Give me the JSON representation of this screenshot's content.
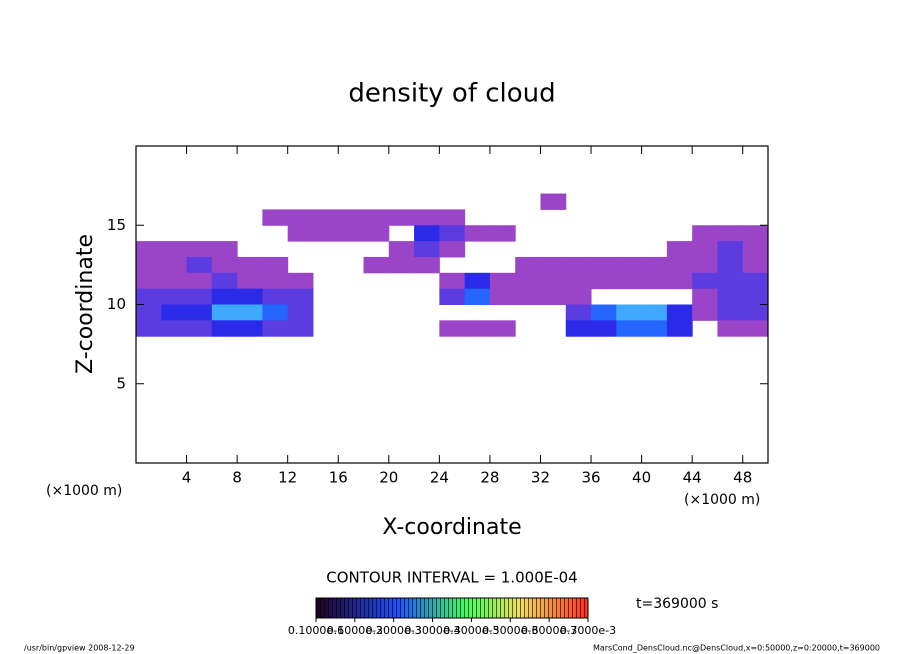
{
  "chart_data": {
    "type": "contour",
    "title": "density of cloud",
    "xlabel": "X-coordinate",
    "ylabel": "Z-coordinate",
    "xunit": "(×1000 m)",
    "xunit2": "(×1000 m)",
    "xlim": [
      0,
      50
    ],
    "ylim": [
      0,
      20
    ],
    "xticks": [
      4,
      8,
      12,
      16,
      20,
      24,
      28,
      32,
      36,
      40,
      44,
      48
    ],
    "yticks": [
      5,
      10,
      15
    ],
    "x": [
      1,
      3,
      5,
      7,
      9,
      11,
      13,
      15,
      17,
      19,
      21,
      23,
      25,
      27,
      29,
      31,
      33,
      35,
      37,
      39,
      41,
      43,
      45,
      47,
      49
    ],
    "z": [
      16.5,
      15.5,
      14.5,
      13.5,
      12.5,
      11.5,
      10.5,
      9.5,
      8.5
    ],
    "values": [
      [
        0,
        0,
        0,
        0,
        0,
        0,
        0,
        0,
        0,
        0,
        0,
        0,
        0,
        0,
        0,
        0,
        0.0001,
        0,
        0,
        0,
        0,
        0,
        0,
        0,
        0
      ],
      [
        0,
        0,
        0,
        0,
        0,
        0.0001,
        0.0001,
        0.0001,
        0.0001,
        0.0001,
        0.0001,
        0.0001,
        0.0001,
        0,
        0,
        0,
        0,
        0,
        0,
        0,
        0,
        0,
        0,
        0,
        0
      ],
      [
        0,
        0,
        0,
        0,
        0,
        0,
        0.0001,
        0.0001,
        0.0001,
        0.0001,
        0,
        0.0003,
        0.0002,
        0.0001,
        0.0001,
        0,
        0,
        0,
        0,
        0,
        0,
        0,
        0.0001,
        0.0001,
        0.0001
      ],
      [
        0.0001,
        0.0001,
        0.0001,
        0.0001,
        0,
        0,
        0,
        0,
        0,
        0,
        0.0001,
        0.0002,
        0.0001,
        0,
        0,
        0,
        0,
        0,
        0,
        0,
        0,
        0.0001,
        0.0001,
        0.0002,
        0.0001
      ],
      [
        0.0001,
        0.0001,
        0.0002,
        0.0001,
        0.0001,
        0.0001,
        0,
        0,
        0,
        0.0001,
        0.0001,
        0.0001,
        0,
        0,
        0,
        0.0001,
        0.0001,
        0.0001,
        0.0001,
        0.0001,
        0.0001,
        0.0001,
        0.0001,
        0.0002,
        0.0001
      ],
      [
        0.0001,
        0.0001,
        0.0001,
        0.0002,
        0.0001,
        0.0001,
        0.0001,
        0,
        0,
        0,
        0,
        0,
        0.0001,
        0.0003,
        0.0001,
        0.0001,
        0.0001,
        0.0001,
        0.0001,
        0.0001,
        0.0001,
        0.0001,
        0.0002,
        0.0002,
        0.0002
      ],
      [
        0.0002,
        0.0002,
        0.0002,
        0.0003,
        0.0003,
        0.0002,
        0.0002,
        0,
        0,
        0,
        0,
        0,
        0.0002,
        0.0004,
        0.0001,
        0.0001,
        0.0001,
        0.0001,
        0,
        0,
        0,
        0,
        0.0001,
        0.0002,
        0.0002
      ],
      [
        0.0002,
        0.0003,
        0.0003,
        0.0005,
        0.0005,
        0.0004,
        0.0002,
        0,
        0,
        0,
        0,
        0,
        0,
        0,
        0,
        0,
        0,
        0.0002,
        0.0004,
        0.0005,
        0.0005,
        0.0003,
        0.0001,
        0.0002,
        0.0002
      ],
      [
        0.0002,
        0.0002,
        0.0002,
        0.0003,
        0.0003,
        0.0002,
        0.0002,
        0,
        0,
        0,
        0,
        0,
        0.0001,
        0.0001,
        0.0001,
        0,
        0,
        0.0003,
        0.0003,
        0.0004,
        0.0004,
        0.0003,
        0,
        0.0001,
        0.0001
      ]
    ],
    "colorbar_ticks": [
      {
        "value": 1e-07,
        "label": "0.1000e-6"
      },
      {
        "value": 0.0001,
        "label": "0.1000e-3"
      },
      {
        "value": 0.0002,
        "label": "0.2000e-3"
      },
      {
        "value": 0.0003,
        "label": "0.3000e-3"
      },
      {
        "value": 0.0004,
        "label": "0.4000e-3"
      },
      {
        "value": 0.0005,
        "label": "0.5000e-3"
      },
      {
        "value": 0.0006,
        "label": "0.6000e-3"
      },
      {
        "value": 0.0007,
        "label": "0.7000e-3"
      }
    ],
    "colors": [
      "#ffffff",
      "#9a44c8",
      "#5a3ce0",
      "#2a2ae8",
      "#2466ff",
      "#3fa8ff",
      "#6ae6ff",
      "#80ff90"
    ],
    "contour_interval": "CONTOUR INTERVAL = 1.000E-04",
    "time": "t=369000 s",
    "footer_left": "/usr/bin/gpview  2008-12-29",
    "footer_right": "MarsCond_DensCloud.nc@DensCloud,x=0:50000,z=0:20000,t=369000"
  }
}
